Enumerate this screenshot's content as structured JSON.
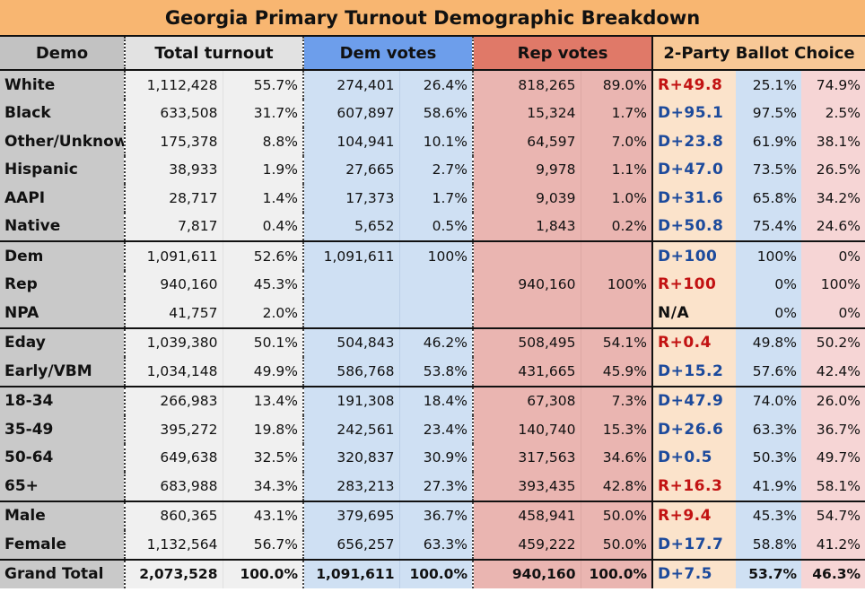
{
  "title": "Georgia Primary Turnout Demographic Breakdown",
  "headers": {
    "demo": "Demo",
    "total": "Total turnout",
    "dem": "Dem votes",
    "rep": "Rep votes",
    "choice": "2-Party Ballot Choice"
  },
  "colors": {
    "title_bg": "#f8b671",
    "dem_header": "#6d9eeb",
    "rep_header": "#e07968",
    "dem_margin": "#1c4a9c",
    "rep_margin": "#c21212"
  },
  "rows": [
    {
      "demo": "White",
      "total": "1,112,428",
      "total_pct": "55.7%",
      "dem": "274,401",
      "dem_pct": "26.4%",
      "rep": "818,265",
      "rep_pct": "89.0%",
      "margin": "R+49.8",
      "party": "R",
      "d_share": "25.1%",
      "r_share": "74.9%"
    },
    {
      "demo": "Black",
      "total": "633,508",
      "total_pct": "31.7%",
      "dem": "607,897",
      "dem_pct": "58.6%",
      "rep": "15,324",
      "rep_pct": "1.7%",
      "margin": "D+95.1",
      "party": "D",
      "d_share": "97.5%",
      "r_share": "2.5%"
    },
    {
      "demo": "Other/Unknown",
      "total": "175,378",
      "total_pct": "8.8%",
      "dem": "104,941",
      "dem_pct": "10.1%",
      "rep": "64,597",
      "rep_pct": "7.0%",
      "margin": "D+23.8",
      "party": "D",
      "d_share": "61.9%",
      "r_share": "38.1%"
    },
    {
      "demo": "Hispanic",
      "total": "38,933",
      "total_pct": "1.9%",
      "dem": "27,665",
      "dem_pct": "2.7%",
      "rep": "9,978",
      "rep_pct": "1.1%",
      "margin": "D+47.0",
      "party": "D",
      "d_share": "73.5%",
      "r_share": "26.5%"
    },
    {
      "demo": "AAPI",
      "total": "28,717",
      "total_pct": "1.4%",
      "dem": "17,373",
      "dem_pct": "1.7%",
      "rep": "9,039",
      "rep_pct": "1.0%",
      "margin": "D+31.6",
      "party": "D",
      "d_share": "65.8%",
      "r_share": "34.2%"
    },
    {
      "demo": "Native",
      "total": "7,817",
      "total_pct": "0.4%",
      "dem": "5,652",
      "dem_pct": "0.5%",
      "rep": "1,843",
      "rep_pct": "0.2%",
      "margin": "D+50.8",
      "party": "D",
      "d_share": "75.4%",
      "r_share": "24.6%"
    },
    {
      "demo": "Dem",
      "total": "1,091,611",
      "total_pct": "52.6%",
      "dem": "1,091,611",
      "dem_pct": "100%",
      "rep": "",
      "rep_pct": "",
      "margin": "D+100",
      "party": "D",
      "d_share": "100%",
      "r_share": "0%"
    },
    {
      "demo": "Rep",
      "total": "940,160",
      "total_pct": "45.3%",
      "dem": "",
      "dem_pct": "",
      "rep": "940,160",
      "rep_pct": "100%",
      "margin": "R+100",
      "party": "R",
      "d_share": "0%",
      "r_share": "100%"
    },
    {
      "demo": "NPA",
      "total": "41,757",
      "total_pct": "2.0%",
      "dem": "",
      "dem_pct": "",
      "rep": "",
      "rep_pct": "",
      "margin": "N/A",
      "party": "N",
      "d_share": "0%",
      "r_share": "0%"
    },
    {
      "demo": "Eday",
      "total": "1,039,380",
      "total_pct": "50.1%",
      "dem": "504,843",
      "dem_pct": "46.2%",
      "rep": "508,495",
      "rep_pct": "54.1%",
      "margin": "R+0.4",
      "party": "R",
      "d_share": "49.8%",
      "r_share": "50.2%"
    },
    {
      "demo": "Early/VBM",
      "total": "1,034,148",
      "total_pct": "49.9%",
      "dem": "586,768",
      "dem_pct": "53.8%",
      "rep": "431,665",
      "rep_pct": "45.9%",
      "margin": "D+15.2",
      "party": "D",
      "d_share": "57.6%",
      "r_share": "42.4%"
    },
    {
      "demo": "18-34",
      "total": "266,983",
      "total_pct": "13.4%",
      "dem": "191,308",
      "dem_pct": "18.4%",
      "rep": "67,308",
      "rep_pct": "7.3%",
      "margin": "D+47.9",
      "party": "D",
      "d_share": "74.0%",
      "r_share": "26.0%"
    },
    {
      "demo": "35-49",
      "total": "395,272",
      "total_pct": "19.8%",
      "dem": "242,561",
      "dem_pct": "23.4%",
      "rep": "140,740",
      "rep_pct": "15.3%",
      "margin": "D+26.6",
      "party": "D",
      "d_share": "63.3%",
      "r_share": "36.7%"
    },
    {
      "demo": "50-64",
      "total": "649,638",
      "total_pct": "32.5%",
      "dem": "320,837",
      "dem_pct": "30.9%",
      "rep": "317,563",
      "rep_pct": "34.6%",
      "margin": "D+0.5",
      "party": "D",
      "d_share": "50.3%",
      "r_share": "49.7%"
    },
    {
      "demo": "65+",
      "total": "683,988",
      "total_pct": "34.3%",
      "dem": "283,213",
      "dem_pct": "27.3%",
      "rep": "393,435",
      "rep_pct": "42.8%",
      "margin": "R+16.3",
      "party": "R",
      "d_share": "41.9%",
      "r_share": "58.1%"
    },
    {
      "demo": "Male",
      "total": "860,365",
      "total_pct": "43.1%",
      "dem": "379,695",
      "dem_pct": "36.7%",
      "rep": "458,941",
      "rep_pct": "50.0%",
      "margin": "R+9.4",
      "party": "R",
      "d_share": "45.3%",
      "r_share": "54.7%"
    },
    {
      "demo": "Female",
      "total": "1,132,564",
      "total_pct": "56.7%",
      "dem": "656,257",
      "dem_pct": "63.3%",
      "rep": "459,222",
      "rep_pct": "50.0%",
      "margin": "D+17.7",
      "party": "D",
      "d_share": "58.8%",
      "r_share": "41.2%"
    },
    {
      "demo": "Grand Total",
      "total": "2,073,528",
      "total_pct": "100.0%",
      "dem": "1,091,611",
      "dem_pct": "100.0%",
      "rep": "940,160",
      "rep_pct": "100.0%",
      "margin": "D+7.5",
      "party": "D",
      "d_share": "53.7%",
      "r_share": "46.3%"
    }
  ]
}
